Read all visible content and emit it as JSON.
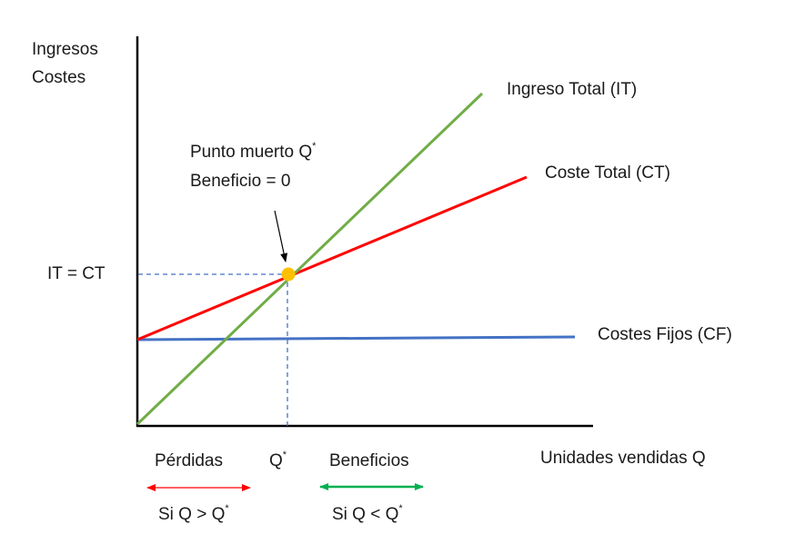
{
  "axes": {
    "y_label_line1": "Ingresos",
    "y_label_line2": "Costes",
    "x_label": "Unidades vendidas Q"
  },
  "lines": {
    "it_label": "Ingreso Total (IT)",
    "ct_label": "Coste Total (CT)",
    "cf_label": "Costes Fijos (CF)"
  },
  "break_even": {
    "label_line1": "Punto muerto Q",
    "label_line1_sup": "*",
    "label_line2": "Beneficio = 0",
    "y_tick": "IT = CT",
    "x_tick": "Q",
    "x_tick_sup": "*"
  },
  "regions": {
    "losses_label": "Pérdidas",
    "losses_condition": "Si Q > Q",
    "losses_condition_sup": "*",
    "profits_label": "Beneficios",
    "profits_condition": "Si Q < Q",
    "profits_condition_sup": "*"
  },
  "colors": {
    "it_line": "#70ad47",
    "ct_line": "#ff0000",
    "cf_line": "#4472c4",
    "break_even_point": "#ffc000",
    "guide": "#4472c4",
    "losses_arrow": "#ff0000",
    "profits_arrow": "#00b050",
    "axis": "#000000"
  }
}
